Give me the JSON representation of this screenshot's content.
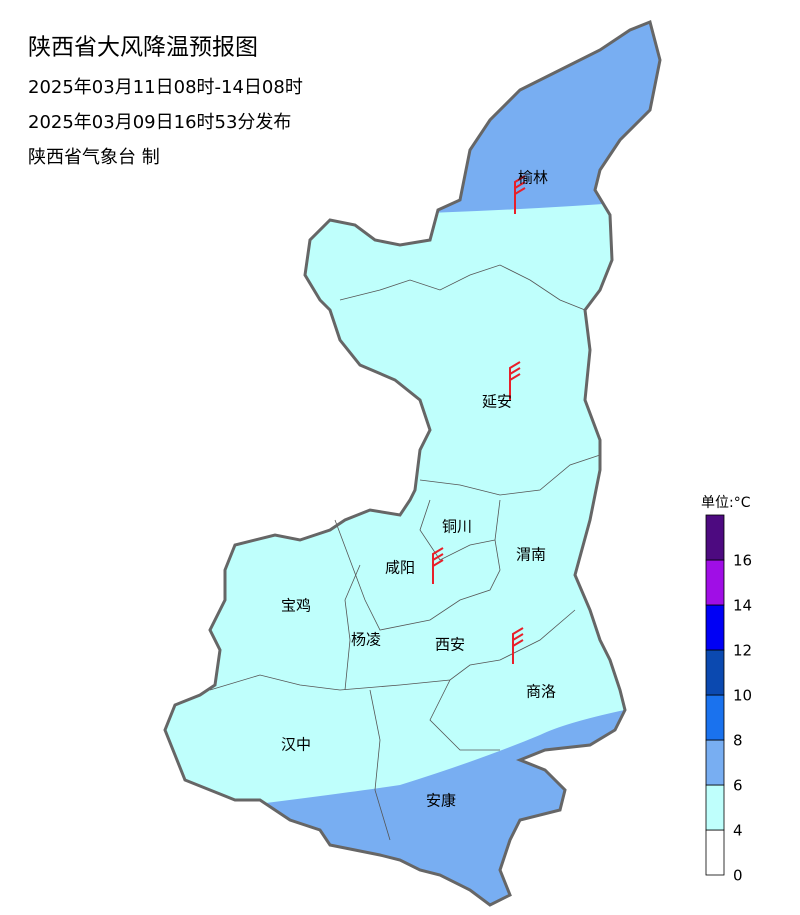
{
  "header": {
    "title": "陕西省大风降温预报图",
    "valid_period": "2025年03月11日08时-14日08时",
    "issued": "2025年03月09日16时53分发布",
    "publisher": "陕西省气象台 制"
  },
  "cities": [
    {
      "label": "榆林"
    },
    {
      "label": "延安"
    },
    {
      "label": "铜川"
    },
    {
      "label": "渭南"
    },
    {
      "label": "咸阳"
    },
    {
      "label": "宝鸡"
    },
    {
      "label": "杨凌"
    },
    {
      "label": "西安"
    },
    {
      "label": "商洛"
    },
    {
      "label": "汉中"
    },
    {
      "label": "安康"
    }
  ],
  "legend": {
    "unit": "单位:°C",
    "ticks": [
      0,
      4,
      6,
      8,
      10,
      12,
      14,
      16
    ],
    "colors": [
      "#ffffff",
      "#bffffc",
      "#78aef2",
      "#1a72ee",
      "#0b49b0",
      "#0000f5",
      "#a00ee6",
      "#4d0a80"
    ]
  }
}
